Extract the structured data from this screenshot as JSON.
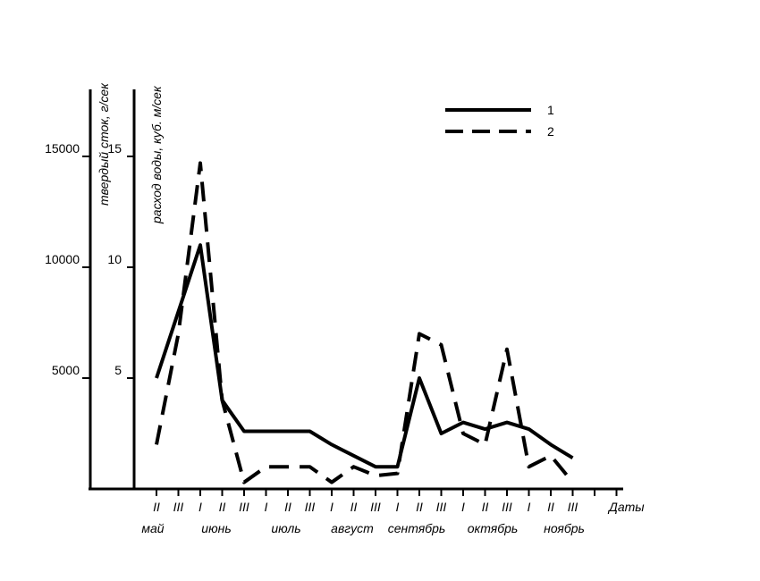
{
  "chart_data": {
    "type": "line",
    "y_left_outer": {
      "label": "твердый сток, г/сек",
      "ticks": [
        {
          "value": 5000,
          "label": "5000"
        },
        {
          "value": 10000,
          "label": "10000"
        },
        {
          "value": 15000,
          "label": "15000"
        }
      ]
    },
    "y_left_inner": {
      "label": "расход воды, куб. м/сек",
      "ticks": [
        {
          "value": 5,
          "label": "5"
        },
        {
          "value": 10,
          "label": "10"
        },
        {
          "value": 15,
          "label": "15"
        }
      ]
    },
    "x_axis_label": "Даты",
    "x_ticks": [
      "II",
      "III",
      "I",
      "II",
      "III",
      "I",
      "II",
      "III",
      "I",
      "II",
      "III",
      "I",
      "II",
      "III",
      "I",
      "II",
      "III",
      "I",
      "II",
      "III"
    ],
    "months": [
      "май",
      "июнь",
      "июль",
      "август",
      "сентябрь",
      "октябрь",
      "ноябрь"
    ],
    "series": [
      {
        "name": "1",
        "style": "solid",
        "x": [
          0,
          1,
          2,
          3,
          4,
          5,
          6,
          7,
          8,
          9,
          10,
          11,
          12,
          13,
          14,
          15,
          16,
          17,
          18,
          19
        ],
        "values": [
          5.0,
          8.0,
          11.0,
          4.0,
          2.6,
          2.6,
          2.6,
          2.6,
          2.0,
          1.5,
          1.0,
          1.0,
          5.0,
          2.5,
          3.0,
          2.7,
          3.0,
          2.7,
          2.0,
          1.4
        ]
      },
      {
        "name": "2",
        "style": "dashed",
        "x": [
          0,
          1,
          2,
          3,
          4,
          5,
          6,
          7,
          8,
          9,
          10,
          11,
          12,
          13,
          14,
          15,
          16,
          17,
          18,
          19
        ],
        "values": [
          2.0,
          7.0,
          14.7,
          4.0,
          0.3,
          1.0,
          1.0,
          1.0,
          0.3,
          1.0,
          0.6,
          0.7,
          7.0,
          6.5,
          2.5,
          2.0,
          6.3,
          1.0,
          1.5,
          0.3
        ]
      }
    ],
    "legend": {
      "position": "top-right",
      "entries": [
        "1",
        "2"
      ]
    }
  }
}
